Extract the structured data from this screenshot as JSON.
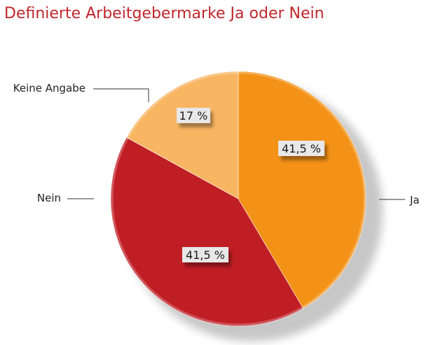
{
  "chart_data": {
    "type": "pie",
    "title": "Definierte Arbeitgebermarke Ja oder Nein",
    "categories": [
      "Ja",
      "Nein",
      "Keine Angabe"
    ],
    "values": [
      41.5,
      41.5,
      17
    ],
    "value_labels": [
      "41,5 %",
      "41,5 %",
      "17 %"
    ],
    "colors": [
      "#f39217",
      "#c01e25",
      "#f8b562"
    ],
    "start_angle_deg": 0,
    "direction": "clockwise"
  }
}
